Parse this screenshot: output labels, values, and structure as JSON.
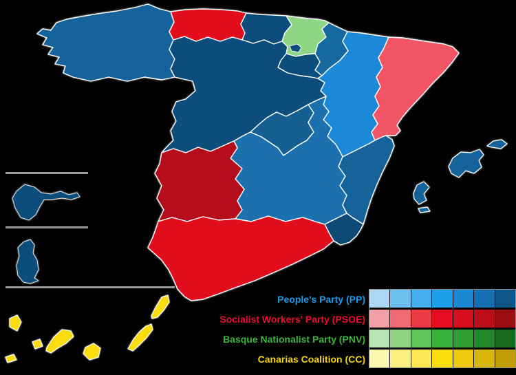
{
  "image": {
    "background": "#000000"
  },
  "map": {
    "border_color": "#ffffff",
    "coast_halo_color": "#bbbbbb",
    "inset_divider_color": "#9a9a9a",
    "regions": [
      {
        "id": "galicia",
        "name": "Galicia",
        "party": "PP",
        "fill": "#17649C"
      },
      {
        "id": "asturias",
        "name": "Asturias",
        "party": "PSOE",
        "fill": "#E1101E"
      },
      {
        "id": "cantabria",
        "name": "Cantabria",
        "party": "PP",
        "fill": "#0D4E7C"
      },
      {
        "id": "basque-country",
        "name": "Basque Country",
        "party": "PNV",
        "fill": "#8ED584"
      },
      {
        "id": "trevino-enclave",
        "name": "Trevino enclave",
        "party": "PP",
        "fill": "#0D4E7C"
      },
      {
        "id": "navarre",
        "name": "Navarre",
        "party": "PP",
        "fill": "#19699F"
      },
      {
        "id": "la-rioja",
        "name": "La Rioja",
        "party": "PP",
        "fill": "#0D4E7C"
      },
      {
        "id": "aragon",
        "name": "Aragon",
        "party": "PP",
        "fill": "#1E88D8"
      },
      {
        "id": "catalonia",
        "name": "Catalonia",
        "party": "PSOE",
        "fill": "#F25666"
      },
      {
        "id": "castile-and-leon",
        "name": "Castile and Leon",
        "party": "PP",
        "fill": "#0D4E7C"
      },
      {
        "id": "madrid",
        "name": "Community of Madrid",
        "party": "PP",
        "fill": "#125E92"
      },
      {
        "id": "castilla-la-mancha",
        "name": "Castilla-La Mancha",
        "party": "PP",
        "fill": "#1B70AE"
      },
      {
        "id": "valencian-community",
        "name": "Valencian Community",
        "party": "PP",
        "fill": "#14629B"
      },
      {
        "id": "murcia",
        "name": "Region of Murcia",
        "party": "PP",
        "fill": "#0D4A75"
      },
      {
        "id": "extremadura",
        "name": "Extremadura",
        "party": "PSOE",
        "fill": "#B5101A"
      },
      {
        "id": "andalusia",
        "name": "Andalusia",
        "party": "PSOE",
        "fill": "#E2111F"
      },
      {
        "id": "balearic-islands",
        "name": "Balearic Islands",
        "party": "PP",
        "fill": "#15629A"
      },
      {
        "id": "canary-islands",
        "name": "Canary Islands",
        "party": "CC",
        "fill": "#FBDC10"
      },
      {
        "id": "ceuta",
        "name": "Ceuta",
        "party": "PP",
        "fill": "#0D4E7C"
      },
      {
        "id": "melilla",
        "name": "Melilla",
        "party": "PP",
        "fill": "#0D4E7C"
      }
    ]
  },
  "legend": {
    "rows": [
      {
        "party": "People's Party (PP)",
        "label_color": "#1D9AE8",
        "swatches": [
          "#ABD7F4",
          "#6CC0EF",
          "#45AEEC",
          "#1F9EE9",
          "#1B86D2",
          "#1470B2",
          "#0E5687"
        ]
      },
      {
        "party": "Socialist Workers' Party (PSOE)",
        "label_color": "#E8102D",
        "swatches": [
          "#F2A0A6",
          "#EF6A72",
          "#EC3A46",
          "#E60D20",
          "#D60E1D",
          "#BB0E19",
          "#9B0C13"
        ]
      },
      {
        "party": "Basque Nationalist Party (PNV)",
        "label_color": "#3DB53C",
        "swatches": [
          "#B9E4B4",
          "#8FD584",
          "#5FC658",
          "#37B53A",
          "#2F9E31",
          "#23872B",
          "#186A20"
        ]
      },
      {
        "party": "Canarias Coalition (CC)",
        "label_color": "#F8D407",
        "swatches": [
          "#FDF8B0",
          "#FCF083",
          "#FBE854",
          "#FBDC0C",
          "#ECCA0B",
          "#D8B609",
          "#BF9E07"
        ]
      }
    ]
  }
}
